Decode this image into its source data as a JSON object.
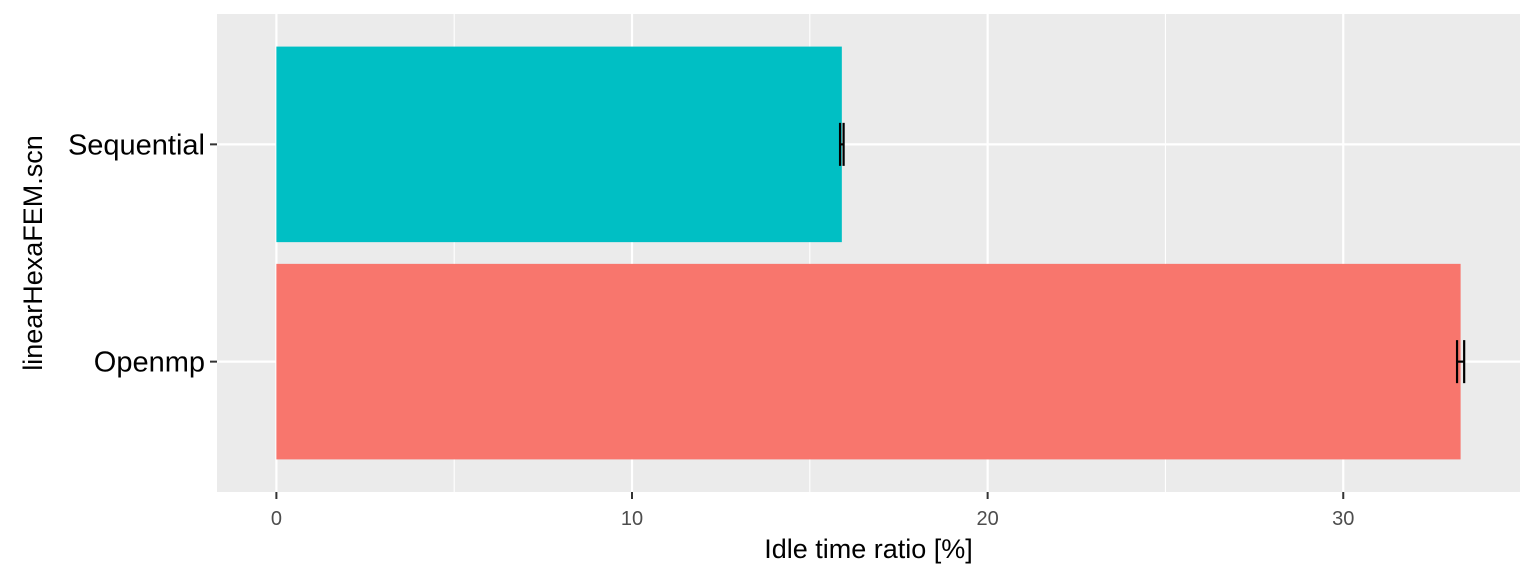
{
  "chart_data": {
    "type": "bar",
    "orientation": "horizontal",
    "categories": [
      "Openmp",
      "Sequential"
    ],
    "values": [
      33.3,
      15.9
    ],
    "errors": [
      0.1,
      0.05
    ],
    "colors": [
      "#f8766d",
      "#00bfc4"
    ],
    "title": "",
    "xlabel": "Idle time ratio [%]",
    "ylabel": "linearHexaFEM.scn",
    "xlim": [
      -1.67,
      34.97
    ],
    "xticks": [
      0,
      10,
      20,
      30
    ],
    "grid": true,
    "legend": "none",
    "panel_background": "#ebebeb",
    "grid_color": "#ffffff"
  }
}
